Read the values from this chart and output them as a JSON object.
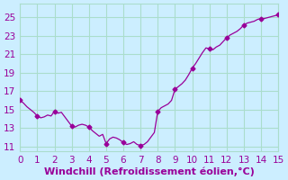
{
  "title": "",
  "xlabel": "Windchill (Refroidissement éolien,°C)",
  "ylabel": "",
  "bg_color": "#cceeff",
  "line_color": "#990099",
  "marker_color": "#990099",
  "xlim": [
    0,
    15
  ],
  "ylim": [
    10.5,
    26.5
  ],
  "xticks": [
    0,
    1,
    2,
    3,
    4,
    5,
    6,
    7,
    8,
    9,
    10,
    11,
    12,
    13,
    14,
    15
  ],
  "yticks": [
    11,
    13,
    15,
    17,
    19,
    21,
    23,
    25
  ],
  "grid_color": "#aaddcc",
  "x": [
    0.0,
    0.2,
    0.4,
    0.6,
    0.8,
    1.0,
    1.2,
    1.4,
    1.6,
    1.8,
    2.0,
    2.2,
    2.4,
    2.6,
    2.8,
    3.0,
    3.2,
    3.4,
    3.6,
    3.8,
    4.0,
    4.2,
    4.4,
    4.6,
    4.8,
    5.0,
    5.2,
    5.4,
    5.6,
    5.8,
    6.0,
    6.2,
    6.4,
    6.6,
    6.8,
    7.0,
    7.2,
    7.4,
    7.6,
    7.8,
    8.0,
    8.2,
    8.4,
    8.6,
    8.8,
    9.0,
    9.2,
    9.4,
    9.6,
    9.8,
    10.0,
    10.2,
    10.4,
    10.6,
    10.8,
    11.0,
    11.2,
    11.4,
    11.6,
    11.8,
    12.0,
    12.2,
    12.4,
    12.6,
    12.8,
    13.0,
    13.2,
    13.4,
    13.6,
    13.8,
    14.0,
    14.2,
    14.4,
    14.6,
    14.8,
    15.0
  ],
  "y": [
    16.0,
    15.7,
    15.3,
    15.0,
    14.7,
    14.3,
    14.1,
    14.2,
    14.4,
    14.3,
    14.8,
    14.6,
    14.7,
    14.2,
    13.7,
    13.2,
    13.1,
    13.3,
    13.4,
    13.3,
    13.1,
    12.7,
    12.4,
    12.1,
    12.3,
    11.3,
    11.8,
    12.0,
    11.9,
    11.7,
    11.4,
    11.2,
    11.3,
    11.5,
    11.2,
    11.1,
    11.2,
    11.5,
    12.0,
    12.5,
    14.8,
    15.2,
    15.4,
    15.6,
    16.0,
    17.2,
    17.5,
    17.8,
    18.2,
    18.8,
    19.5,
    20.0,
    20.6,
    21.2,
    21.7,
    21.6,
    21.5,
    21.8,
    22.0,
    22.4,
    22.8,
    23.1,
    23.3,
    23.5,
    23.8,
    24.2,
    24.4,
    24.5,
    24.6,
    24.8,
    24.9,
    24.9,
    25.0,
    25.1,
    25.2,
    25.3
  ],
  "marker_x": [
    0.0,
    1.0,
    2.0,
    3.0,
    4.0,
    5.0,
    6.0,
    7.0,
    8.0,
    9.0,
    10.0,
    11.0,
    12.0,
    13.0,
    14.0,
    15.0
  ],
  "marker_y": [
    16.0,
    14.3,
    14.8,
    13.2,
    13.1,
    11.3,
    11.4,
    11.1,
    14.8,
    17.2,
    19.5,
    21.6,
    22.8,
    24.2,
    24.9,
    25.3
  ],
  "xlabel_fontsize": 8,
  "tick_fontsize": 7.5,
  "xlabel_color": "#990099",
  "tick_color": "#990099"
}
